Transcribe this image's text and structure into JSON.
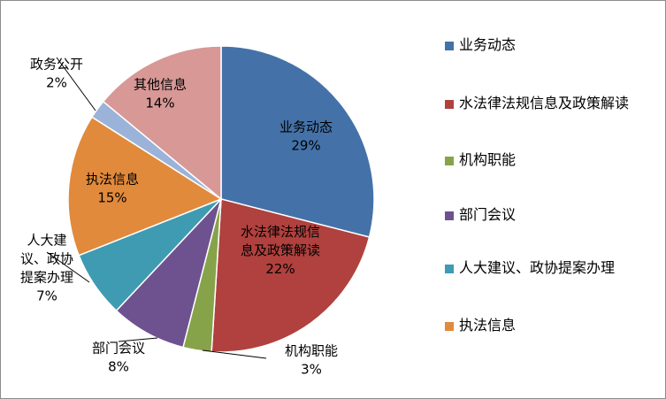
{
  "chart_data": {
    "type": "pie",
    "slices": [
      {
        "name": "业务动态",
        "value": 29,
        "label": "29%",
        "color": "#4472a8",
        "label_lines": [
          "业务动态"
        ]
      },
      {
        "name": "水法律法规信息及政策解读",
        "value": 22,
        "label": "22%",
        "color": "#b0413e",
        "label_lines": [
          "水法律法规信",
          "息及政策解读"
        ]
      },
      {
        "name": "机构职能",
        "value": 3,
        "label": "3%",
        "color": "#86a34a",
        "label_lines": [
          "机构职能"
        ]
      },
      {
        "name": "部门会议",
        "value": 8,
        "label": "8%",
        "color": "#6e5290",
        "label_lines": [
          "部门会议"
        ]
      },
      {
        "name": "人大建议、政协提案办理",
        "value": 7,
        "label": "7%",
        "color": "#3f9bb2",
        "label_lines": [
          "人大建",
          "议、政协",
          "提案办理"
        ]
      },
      {
        "name": "执法信息",
        "value": 15,
        "label": "15%",
        "color": "#e18a3c",
        "label_lines": [
          "执法信息"
        ]
      },
      {
        "name": "政务公开",
        "value": 2,
        "label": "2%",
        "color": "#9bb3d8",
        "label_lines": [
          "政务公开"
        ]
      },
      {
        "name": "其他信息",
        "value": 14,
        "label": "14%",
        "color": "#d79896",
        "label_lines": [
          "其他信息"
        ]
      }
    ],
    "legend": {
      "position": "right",
      "entries": [
        {
          "name": "业务动态",
          "color": "#4472a8"
        },
        {
          "name": "水法律法规信息及政策解读",
          "color": "#b0413e"
        },
        {
          "name": "机构职能",
          "color": "#86a34a"
        },
        {
          "name": "部门会议",
          "color": "#6e5290"
        },
        {
          "name": "人大建议、政协提案办理",
          "color": "#3f9bb2"
        },
        {
          "name": "执法信息",
          "color": "#e18a3c"
        }
      ]
    }
  }
}
